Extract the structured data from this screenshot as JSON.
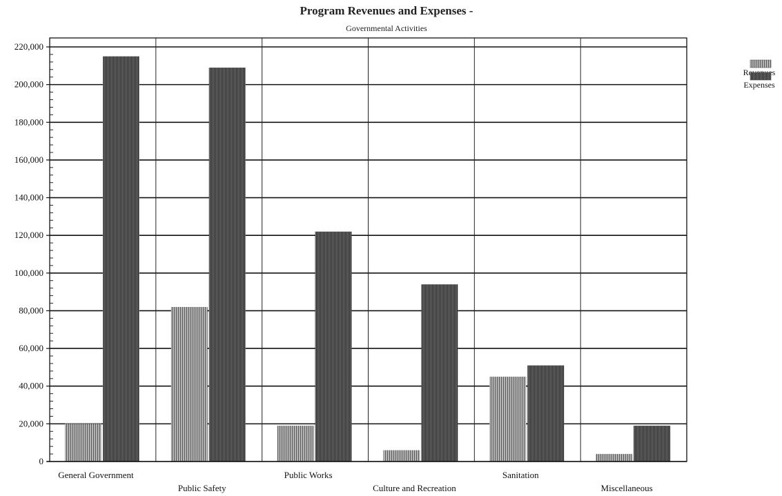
{
  "chart_data": {
    "type": "bar",
    "title": "Program Revenues and Expenses -",
    "subtitle": "Governmental Activities",
    "xlabel": "",
    "ylabel": "",
    "categories": [
      "General Government",
      "Public Safety",
      "Public Works",
      "Culture and Recreation",
      "Sanitation",
      "Miscellaneous"
    ],
    "series": [
      {
        "name": "Revenues",
        "values": [
          20000,
          82000,
          19000,
          6000,
          45000,
          4000
        ],
        "color": "#8a8a8a"
      },
      {
        "name": "Expenses",
        "values": [
          215000,
          209000,
          122000,
          94000,
          51000,
          19000
        ],
        "color": "#4a4a4a"
      }
    ],
    "ylim": [
      0,
      220000
    ],
    "yticks": [
      0,
      20000,
      40000,
      60000,
      80000,
      100000,
      120000,
      140000,
      160000,
      180000,
      200000,
      220000
    ],
    "ytick_labels": [
      "0",
      "20,000",
      "40,000",
      "60,000",
      "80,000",
      "100,000",
      "120,000",
      "140,000",
      "160,000",
      "180,000",
      "200,000",
      "220,000"
    ],
    "grid": true,
    "legend": "top-right"
  }
}
